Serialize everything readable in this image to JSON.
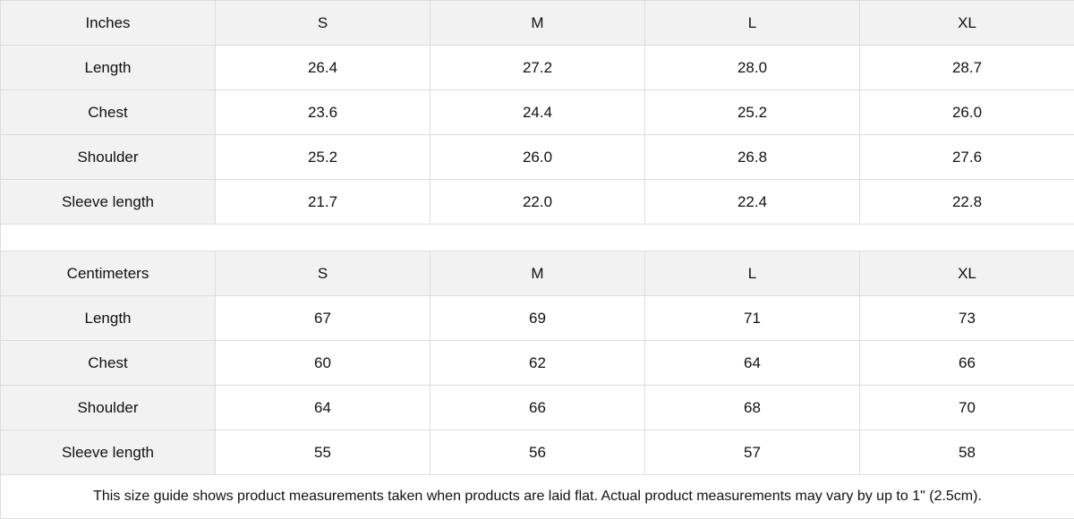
{
  "tables": [
    {
      "unit": "Inches",
      "sizes": [
        "S",
        "M",
        "L",
        "XL"
      ],
      "rows": [
        {
          "label": "Length",
          "values": [
            "26.4",
            "27.2",
            "28.0",
            "28.7"
          ]
        },
        {
          "label": "Chest",
          "values": [
            "23.6",
            "24.4",
            "25.2",
            "26.0"
          ]
        },
        {
          "label": "Shoulder",
          "values": [
            "25.2",
            "26.0",
            "26.8",
            "27.6"
          ]
        },
        {
          "label": "Sleeve length",
          "values": [
            "21.7",
            "22.0",
            "22.4",
            "22.8"
          ]
        }
      ]
    },
    {
      "unit": "Centimeters",
      "sizes": [
        "S",
        "M",
        "L",
        "XL"
      ],
      "rows": [
        {
          "label": "Length",
          "values": [
            "67",
            "69",
            "71",
            "73"
          ]
        },
        {
          "label": "Chest",
          "values": [
            "60",
            "62",
            "64",
            "66"
          ]
        },
        {
          "label": "Shoulder",
          "values": [
            "64",
            "66",
            "68",
            "70"
          ]
        },
        {
          "label": "Sleeve length",
          "values": [
            "55",
            "56",
            "57",
            "58"
          ]
        }
      ]
    }
  ],
  "note": "This size guide shows product measurements taken when products are laid flat.  Actual product measurements may vary by up to 1\" (2.5cm).",
  "colors": {
    "header_bg": "#f2f2f2",
    "border": "#dddddd"
  }
}
